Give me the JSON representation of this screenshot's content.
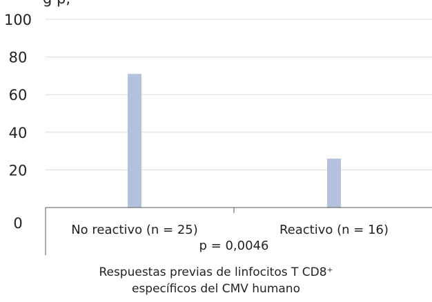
{
  "chart_data": {
    "type": "bar",
    "title": "g                                 p,",
    "categories": [
      "No reactivo (n = 25)",
      "Reactivo (n = 16)"
    ],
    "values": [
      71,
      26
    ],
    "ylim": [
      0,
      100
    ],
    "yticks": [
      0,
      20,
      40,
      60,
      80,
      100
    ],
    "grid": true,
    "bar_color": "#b4c1dc",
    "annotation": "p = 0,0046",
    "xlabel": [
      "Respuestas previas de linfocitos T CD8⁺",
      "específicos del CMV humano"
    ]
  }
}
